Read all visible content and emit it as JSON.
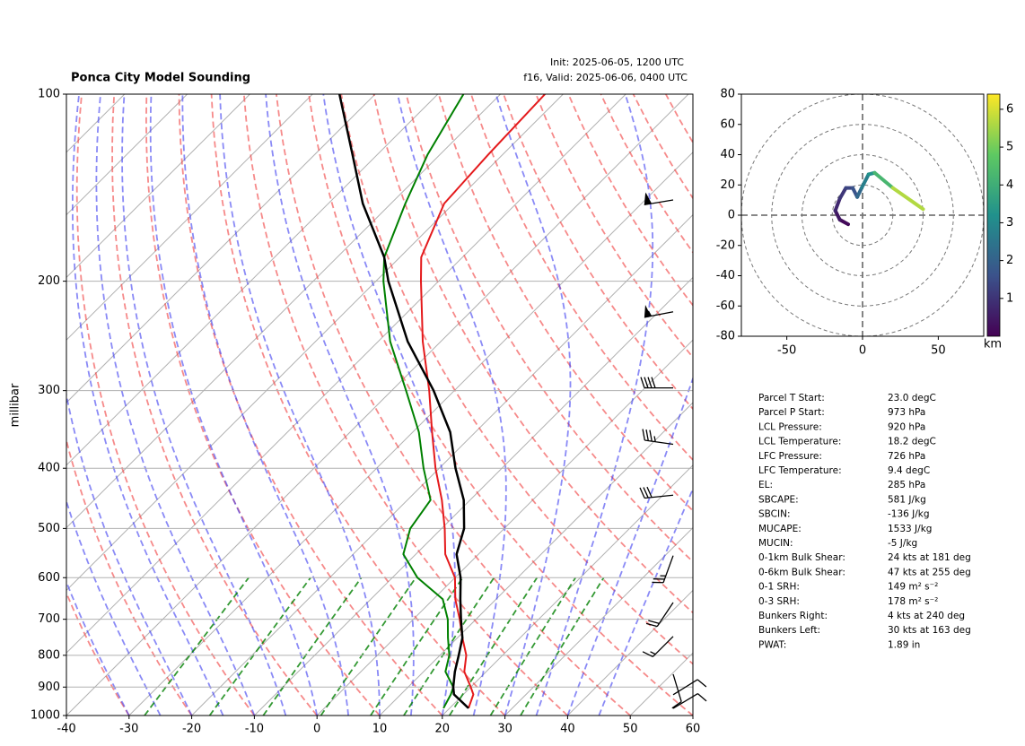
{
  "chart_data": [
    {
      "type": "skewt",
      "title": "Ponca City Model Sounding",
      "subtitle": [
        "Init: 2025-06-05, 1200 UTC",
        "f16, Valid: 2025-06-06, 0400 UTC"
      ],
      "ylabel": "millibar",
      "xlim": [
        -40,
        60
      ],
      "xticks": [
        -40,
        -30,
        -20,
        -10,
        0,
        10,
        20,
        30,
        40,
        50,
        60
      ],
      "ylim": [
        1000,
        100
      ],
      "log_y": true,
      "yticks": [
        100,
        200,
        300,
        400,
        500,
        600,
        700,
        800,
        900,
        1000
      ],
      "grid": true,
      "pressure": [
        973,
        925,
        900,
        850,
        800,
        750,
        700,
        650,
        600,
        550,
        500,
        450,
        400,
        350,
        300,
        250,
        200,
        183,
        150,
        125,
        100
      ],
      "series": [
        {
          "name": "Temperature",
          "color": "#e41a1c",
          "values": [
            23,
            21.6,
            20,
            16.5,
            14.2,
            10.8,
            7.4,
            3.5,
            0,
            -5.3,
            -9.5,
            -14.5,
            -20.6,
            -26.9,
            -34,
            -42.9,
            -52.8,
            -56.6,
            -61.5,
            -62.3,
            -62.9
          ]
        },
        {
          "name": "Dewpoint",
          "color": "#008000",
          "values": [
            19,
            18,
            17.2,
            13.5,
            11.5,
            8.5,
            5.5,
            1.5,
            -6,
            -12,
            -15,
            -16.3,
            -22.5,
            -29,
            -37.7,
            -48.1,
            -58.8,
            -62.5,
            -67.7,
            -72,
            -75.9
          ]
        },
        {
          "name": "Parcel",
          "color": "#000000",
          "values": [
            23,
            18.5,
            17.2,
            15,
            13,
            10.8,
            7.6,
            4.3,
            0.9,
            -3.5,
            -6.4,
            -11,
            -17.4,
            -24,
            -33.3,
            -45.3,
            -58,
            -62.5,
            -74.5,
            -84,
            -95.7
          ]
        }
      ],
      "wind": {
        "pressure": [
          148,
          224,
          297,
          366,
          442,
          553,
          658,
          746,
          858,
          926,
          974
        ],
        "u": [
          60,
          52,
          40,
          35,
          30,
          8,
          10,
          12,
          -3,
          -8,
          -10
        ],
        "v": [
          10,
          10,
          0,
          -5,
          3,
          22,
          15,
          12,
          10,
          -5,
          -6
        ]
      }
    },
    {
      "type": "hodograph",
      "xlim": [
        -80,
        80
      ],
      "ylim": [
        -80,
        80
      ],
      "xticks": [
        -50,
        0,
        50
      ],
      "yticks": [
        -80,
        -60,
        -40,
        -20,
        0,
        20,
        40,
        60,
        80
      ],
      "rings": [
        20,
        40,
        60,
        80
      ],
      "u": [
        -9.5,
        -15,
        -18,
        -15,
        -11,
        -6.5,
        -3.5,
        -0.6,
        4,
        8,
        20,
        40
      ],
      "v": [
        -6,
        -3,
        3,
        11,
        18,
        18,
        12,
        18,
        27,
        28,
        18,
        4
      ],
      "height": [
        0,
        0.3,
        0.6,
        0.9,
        1.2,
        1.5,
        1.8,
        2.5,
        3,
        3.5,
        5,
        6.3
      ],
      "clim": [
        0,
        6.4
      ],
      "cticks": [
        1,
        2,
        3,
        4,
        5,
        6
      ],
      "colorbar_label": "km"
    }
  ],
  "parameters": {
    "rows": [
      [
        "Parcel T Start:",
        "23.0 degC"
      ],
      [
        "Parcel P Start:",
        "973 hPa"
      ],
      [
        "LCL Pressure:",
        "920 hPa"
      ],
      [
        "LCL Temperature:",
        "18.2 degC"
      ],
      [
        "LFC Pressure:",
        "726 hPa"
      ],
      [
        "LFC Temperature:",
        "9.4 degC"
      ],
      [
        "EL:",
        "285 hPa"
      ],
      [
        "SBCAPE:",
        "581 J/kg"
      ],
      [
        "SBCIN:",
        "-136 J/kg"
      ],
      [
        "MUCAPE:",
        "1533 J/kg"
      ],
      [
        "MUCIN:",
        "-5 J/kg"
      ],
      [
        "0-1km Bulk Shear:",
        "24 kts at 181 deg"
      ],
      [
        "0-6km Bulk Shear:",
        "47 kts at 255 deg"
      ],
      [
        "0-1 SRH:",
        "149 m² s⁻²"
      ],
      [
        "0-3 SRH:",
        "178 m² s⁻²"
      ],
      [
        "Bunkers Right:",
        "4 kts at 240 deg"
      ],
      [
        "Bunkers Left:",
        "30 kts at 163 deg"
      ],
      [
        "PWAT:",
        "1.89 in"
      ]
    ]
  }
}
